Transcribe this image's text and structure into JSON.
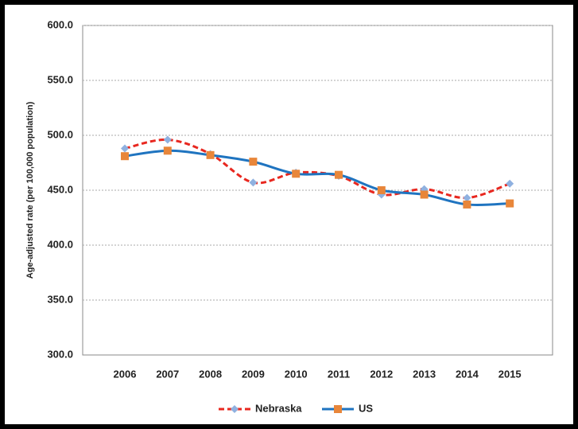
{
  "chart_data": {
    "type": "line",
    "y_label": "Age-adjusted rate (per 100,000 population)",
    "categories": [
      "2006",
      "2007",
      "2008",
      "2009",
      "2010",
      "2011",
      "2012",
      "2013",
      "2014",
      "2015"
    ],
    "series": [
      {
        "name": "Nebraska",
        "color": "#e8271f",
        "marker_color": "#8fb1e0",
        "marker": "diamond",
        "dashed": true,
        "values": [
          488,
          496,
          483,
          457,
          466,
          463,
          446,
          451,
          443,
          456
        ]
      },
      {
        "name": "US",
        "color": "#1f74c0",
        "marker_color": "#e8863a",
        "marker": "square",
        "dashed": false,
        "values": [
          481,
          486,
          482,
          476,
          465,
          464,
          450,
          446,
          437,
          438
        ]
      }
    ],
    "ylim": [
      300,
      600
    ],
    "yticks": [
      {
        "value": 300,
        "label": "300.0"
      },
      {
        "value": 350,
        "label": "350.0"
      },
      {
        "value": 400,
        "label": "400.0"
      },
      {
        "value": 450,
        "label": "450.0"
      },
      {
        "value": 500,
        "label": "500.0"
      },
      {
        "value": 550,
        "label": "550.0"
      },
      {
        "value": 600,
        "label": "600.0"
      }
    ],
    "grid": true,
    "legend": "bottom"
  }
}
